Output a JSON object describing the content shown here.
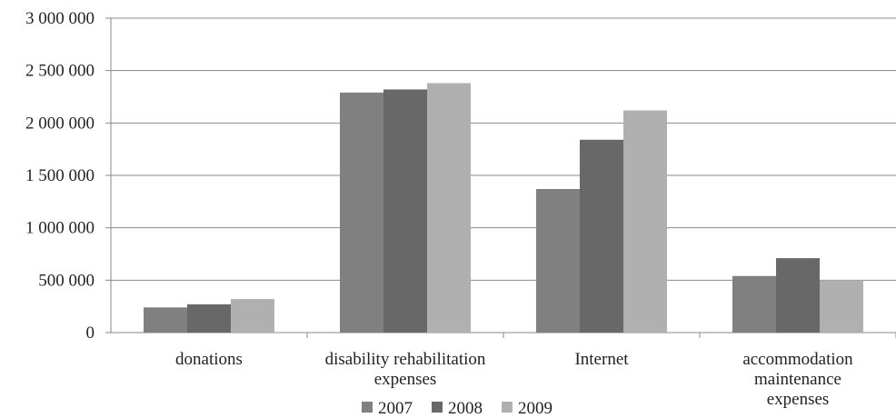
{
  "chart_data": {
    "type": "bar",
    "title": "",
    "xlabel": "",
    "ylabel": "",
    "ylim": [
      0,
      3000000
    ],
    "yticks": [
      "0",
      "500 000",
      "1 000 000",
      "1 500 000",
      "2 000 000",
      "2 500 000",
      "3 000 000"
    ],
    "categories": [
      "donations",
      "disability rehabilitation expenses",
      "Internet",
      "accommodation maintenance expenses"
    ],
    "series": [
      {
        "name": "2007",
        "color": "#808080",
        "values": [
          240000,
          2290000,
          1370000,
          540000
        ]
      },
      {
        "name": "2008",
        "color": "#686868",
        "values": [
          270000,
          2320000,
          1840000,
          710000
        ]
      },
      {
        "name": "2009",
        "color": "#b0b0b0",
        "values": [
          320000,
          2380000,
          2120000,
          500000
        ]
      }
    ],
    "grid": true,
    "legend_position": "bottom"
  }
}
